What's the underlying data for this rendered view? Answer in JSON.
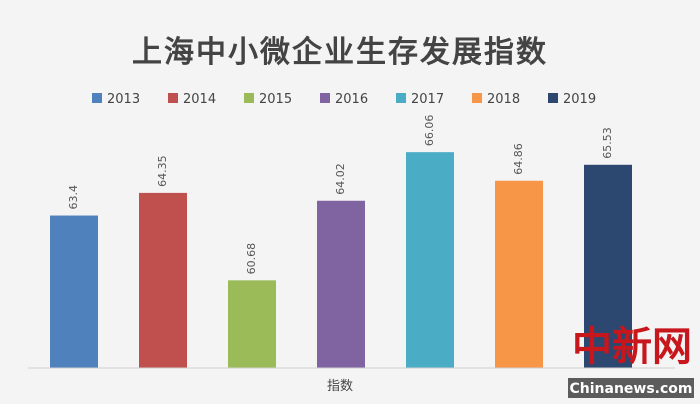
{
  "chart_data": {
    "type": "bar",
    "title": "上海中小微企业生存发展指数",
    "xlabel": "指数",
    "ylabel": "",
    "ylim": [
      57,
      67.2
    ],
    "grid": false,
    "legend_position": "top",
    "series": [
      {
        "name": "2013",
        "value": 63.4,
        "color": "#4f81bd"
      },
      {
        "name": "2014",
        "value": 64.35,
        "color": "#c0504d"
      },
      {
        "name": "2015",
        "value": 60.68,
        "color": "#9bbb59"
      },
      {
        "name": "2016",
        "value": 64.02,
        "color": "#8064a2"
      },
      {
        "name": "2017",
        "value": 66.06,
        "color": "#4bacc6"
      },
      {
        "name": "2018",
        "value": 64.86,
        "color": "#f79646"
      },
      {
        "name": "2019",
        "value": 65.53,
        "color": "#2c4770"
      }
    ]
  },
  "watermark": {
    "logo_text": "中新网",
    "site": "Chinanews.com"
  }
}
